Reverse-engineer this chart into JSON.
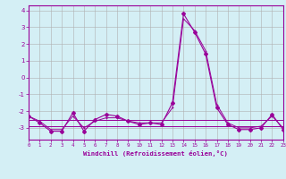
{
  "xlabel": "Windchill (Refroidissement éolien,°C)",
  "x": [
    0,
    1,
    2,
    3,
    4,
    5,
    6,
    7,
    8,
    9,
    10,
    11,
    12,
    13,
    14,
    15,
    16,
    17,
    18,
    19,
    20,
    21,
    22,
    23
  ],
  "line_main": [
    -2.3,
    -2.7,
    -3.2,
    -3.2,
    -2.1,
    -3.2,
    -2.5,
    -2.2,
    -2.3,
    -2.6,
    -2.8,
    -2.7,
    -2.8,
    -1.5,
    3.8,
    2.7,
    1.4,
    -1.8,
    -2.8,
    -3.1,
    -3.1,
    -3.0,
    -2.2,
    -3.1
  ],
  "line_smooth": [
    -2.3,
    -2.6,
    -3.1,
    -3.1,
    -2.3,
    -3.0,
    -2.6,
    -2.4,
    -2.4,
    -2.6,
    -2.7,
    -2.7,
    -2.7,
    -1.8,
    3.5,
    2.8,
    1.6,
    -1.6,
    -2.7,
    -3.0,
    -3.0,
    -2.9,
    -2.3,
    -3.0
  ],
  "trend_flat1": [
    -2.5,
    -2.5,
    -2.5,
    -2.5,
    -2.5,
    -2.5,
    -2.5,
    -2.5,
    -2.5,
    -2.5,
    -2.5,
    -2.5,
    -2.5,
    -2.5,
    -2.5,
    -2.5,
    -2.5,
    -2.5,
    -2.5,
    -2.5,
    -2.5,
    -2.5,
    -2.5,
    -2.5
  ],
  "trend_flat2": [
    -2.9,
    -2.9,
    -2.9,
    -2.9,
    -2.9,
    -2.9,
    -2.9,
    -2.9,
    -2.9,
    -2.9,
    -2.9,
    -2.9,
    -2.9,
    -2.9,
    -2.9,
    -2.9,
    -2.9,
    -2.9,
    -2.9,
    -2.9,
    -2.9,
    -2.9,
    -2.9,
    -2.9
  ],
  "line_color": "#990099",
  "bg_color": "#d4eff5",
  "grid_color": "#b0b0b0",
  "ylim": [
    -3.7,
    4.3
  ],
  "yticks": [
    -3,
    -2,
    -1,
    0,
    1,
    2,
    3,
    4
  ],
  "xlim": [
    0,
    23
  ]
}
